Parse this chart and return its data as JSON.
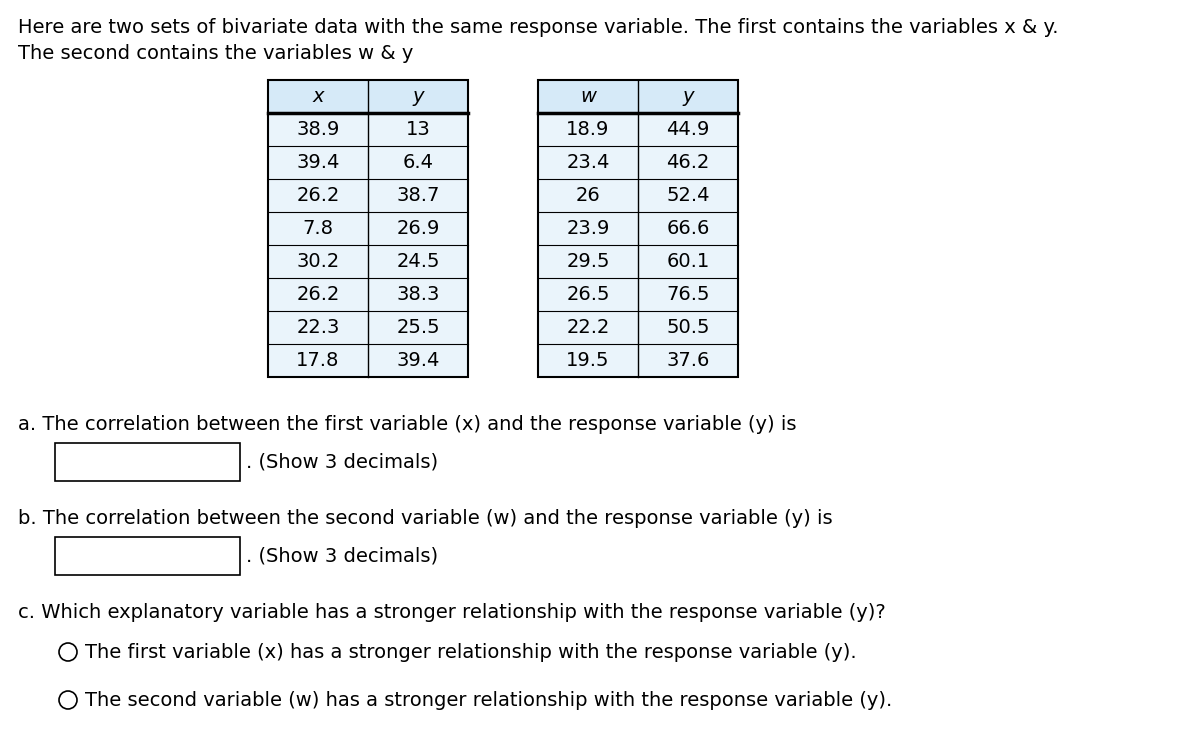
{
  "header_text_line1": "Here are two sets of bivariate data with the same response variable. The first contains the variables x & y.",
  "header_text_line2": "The second contains the variables w & y",
  "table1_headers": [
    "x",
    "y"
  ],
  "table1_data": [
    [
      "38.9",
      "13"
    ],
    [
      "39.4",
      "6.4"
    ],
    [
      "26.2",
      "38.7"
    ],
    [
      "7.8",
      "26.9"
    ],
    [
      "30.2",
      "24.5"
    ],
    [
      "26.2",
      "38.3"
    ],
    [
      "22.3",
      "25.5"
    ],
    [
      "17.8",
      "39.4"
    ]
  ],
  "table2_headers": [
    "w",
    "y"
  ],
  "table2_data": [
    [
      "18.9",
      "44.9"
    ],
    [
      "23.4",
      "46.2"
    ],
    [
      "26",
      "52.4"
    ],
    [
      "23.9",
      "66.6"
    ],
    [
      "29.5",
      "60.1"
    ],
    [
      "26.5",
      "76.5"
    ],
    [
      "22.2",
      "50.5"
    ],
    [
      "19.5",
      "37.6"
    ]
  ],
  "question_a": "a. The correlation between the first variable (x) and the response variable (y) is",
  "question_b": "b. The correlation between the second variable (w) and the response variable (y) is",
  "question_c": "c. Which explanatory variable has a stronger relationship with the response variable (y)?",
  "show_decimals": "(Show 3 decimals)",
  "option1": "The first variable (x) has a stronger relationship with the response variable (y).",
  "option2": "The second variable (w) has a stronger relationship with the response variable (y).",
  "header_bg_color": "#d6eaf8",
  "row_bg_color": "#eaf4fb",
  "bg_color": "#ffffff",
  "text_color": "#000000",
  "font_size": 14,
  "table_font_size": 14,
  "italic_vars_a": [
    "x",
    "y"
  ],
  "italic_vars_b": [
    "w",
    "y"
  ]
}
